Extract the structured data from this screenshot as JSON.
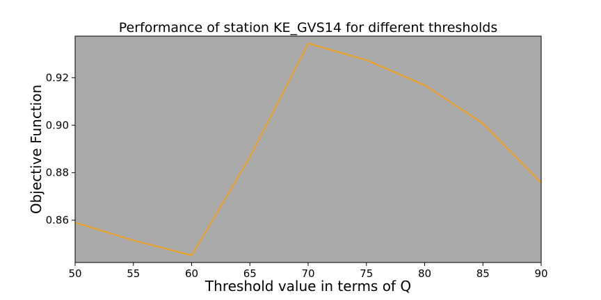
{
  "chart_data": {
    "type": "line",
    "title": "Performance of station KE_GVS14 for different thresholds",
    "xlabel": "Threshold value in terms of Q",
    "ylabel": "Objective Function",
    "x": [
      50,
      55,
      60,
      65,
      70,
      75,
      80,
      85,
      90
    ],
    "series": [
      {
        "values": [
          0.859,
          0.8515,
          0.8452,
          0.8867,
          0.9344,
          0.9274,
          0.9168,
          0.9007,
          0.8757
        ]
      }
    ],
    "xlim": [
      50,
      90
    ],
    "ylim": [
      0.8422,
      0.9375
    ],
    "xticks": [
      50,
      55,
      60,
      65,
      70,
      75,
      80,
      85,
      90
    ],
    "yticks": [
      0.86,
      0.88,
      0.9,
      0.92
    ],
    "xtick_labels": [
      "50",
      "55",
      "60",
      "65",
      "70",
      "75",
      "80",
      "85",
      "90"
    ],
    "ytick_labels": [
      "0.86",
      "0.88",
      "0.90",
      "0.92"
    ],
    "grid": false,
    "legend": "none",
    "colors": {
      "line": "#f0a020",
      "plot_background": "#a9a9a9"
    }
  }
}
